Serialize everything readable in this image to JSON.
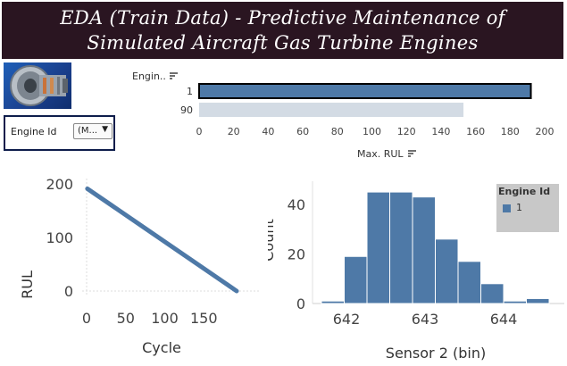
{
  "banner": {
    "line1": "EDA (Train Data) - Predictive Maintenance of",
    "line2": "Simulated Aircraft Gas Turbine Engines"
  },
  "filter": {
    "label": "Engine Id",
    "value": "(M...",
    "icon": "chevron-down-icon"
  },
  "bar_chart": {
    "row_header": "Engin..",
    "sort_icon": "sort-icon",
    "rows": [
      "1",
      "90"
    ],
    "x_ticks": [
      "0",
      "20",
      "40",
      "60",
      "80",
      "100",
      "120",
      "140",
      "160",
      "180",
      "200"
    ],
    "x_title": "Max. RUL",
    "colors": {
      "selected": "#4e79a7",
      "faded": "#d3dbe4"
    }
  },
  "line_chart": {
    "y_title": "RUL",
    "x_title": "Cycle",
    "y_ticks": [
      "200",
      "100",
      "0"
    ],
    "x_ticks": [
      "0",
      "50",
      "100",
      "150"
    ]
  },
  "histogram": {
    "y_title": "Count",
    "x_title": "Sensor 2 (bin)",
    "y_ticks": [
      "40",
      "20",
      "0"
    ],
    "x_ticks": [
      "642",
      "643",
      "644"
    ]
  },
  "legend": {
    "title": "Engine Id",
    "item": "1",
    "color": "#4e79a7"
  },
  "chart_data": [
    {
      "type": "bar",
      "categories": [
        "1",
        "90"
      ],
      "values": [
        192,
        153
      ],
      "xlabel": "Max. RUL",
      "ylabel": "Engin..",
      "xlim": [
        0,
        200
      ]
    },
    {
      "type": "line",
      "x": [
        1,
        192
      ],
      "y": [
        191,
        0
      ],
      "xlabel": "Cycle",
      "ylabel": "RUL",
      "xlim": [
        0,
        192
      ],
      "ylim": [
        0,
        205
      ]
    },
    {
      "type": "bar",
      "categories": [
        "641.6",
        "641.9",
        "642.2",
        "642.5",
        "642.8",
        "643.1",
        "643.4",
        "643.7",
        "644.0",
        "644.3"
      ],
      "values": [
        1,
        19,
        45,
        45,
        43,
        26,
        17,
        8,
        1,
        2
      ],
      "xlabel": "Sensor 2 (bin)",
      "ylabel": "Count",
      "ylim": [
        0,
        49
      ]
    }
  ]
}
